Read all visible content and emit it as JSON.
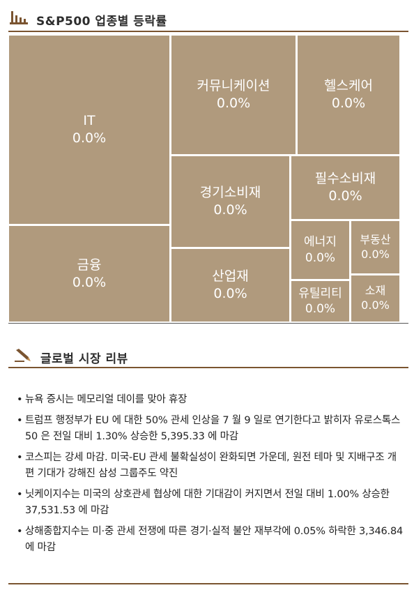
{
  "section1": {
    "title": "S&P500 업종별 등락률",
    "icon": "bar-chart-icon"
  },
  "sectors": {
    "it": {
      "name": "IT",
      "change": "0.0%"
    },
    "comm": {
      "name": "커뮤니케이션",
      "change": "0.0%"
    },
    "health": {
      "name": "헬스케어",
      "change": "0.0%"
    },
    "consumer_disc": {
      "name": "경기소비재",
      "change": "0.0%"
    },
    "consumer_staples": {
      "name": "필수소비재",
      "change": "0.0%"
    },
    "finance": {
      "name": "금융",
      "change": "0.0%"
    },
    "industrial": {
      "name": "산업재",
      "change": "0.0%"
    },
    "energy": {
      "name": "에너지",
      "change": "0.0%"
    },
    "real_estate": {
      "name": "부동산",
      "change": "0.0%"
    },
    "utilities": {
      "name": "유틸리티",
      "change": "0.0%"
    },
    "materials": {
      "name": "소재",
      "change": "0.0%"
    }
  },
  "colors": {
    "tile": "#b09a7d",
    "accent": "#7a5430"
  },
  "section2": {
    "title": "글로벌 시장 리뷰",
    "icon": "pen-icon"
  },
  "review": {
    "bullet": "•",
    "items": [
      "뉴욕 증시는 메모리얼 데이를 맞아 휴장",
      "트럼프 행정부가 EU 에 대한 50% 관세 인상을 7 월 9 일로 연기한다고 밝히자 유로스톡스 50 은 전일 대비 1.30% 상승한 5,395.33 에 마감",
      "코스피는 강세 마감. 미국-EU 관세 불확실성이 완화되면 가운데, 원전 테마 및 지배구조 개편 기대가 강해진 삼성 그룹주도 약진",
      "닛케이지수는 미국의 상호관세 협상에 대한 기대감이 커지면서 전일 대비 1.00% 상승한 37,531.53 에 마감",
      "상해종합지수는 미·중 관세 전쟁에 따른 경기·실적 불안 재부각에 0.05% 하락한 3,346.84 에 마감"
    ]
  }
}
